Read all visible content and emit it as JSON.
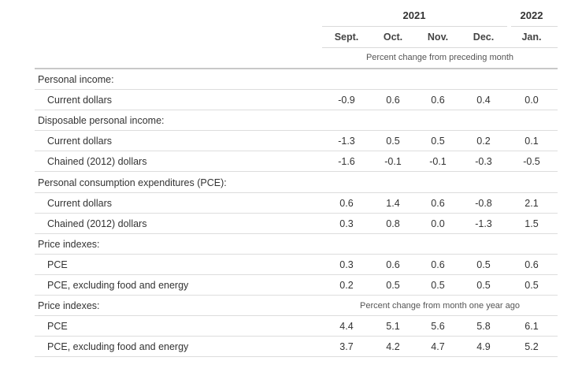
{
  "header": {
    "year_2021": "2021",
    "year_2022": "2022",
    "months": [
      "Sept.",
      "Oct.",
      "Nov.",
      "Dec.",
      "Jan."
    ],
    "unit_note": "Percent change from preceding month"
  },
  "rows": [
    {
      "label": "Personal income:",
      "indent": false,
      "values": [
        "",
        "",
        "",
        "",
        ""
      ],
      "note": ""
    },
    {
      "label": "Current dollars",
      "indent": true,
      "values": [
        "-0.9",
        "0.6",
        "0.6",
        "0.4",
        "0.0"
      ],
      "note": ""
    },
    {
      "label": "Disposable personal income:",
      "indent": false,
      "values": [
        "",
        "",
        "",
        "",
        ""
      ],
      "note": ""
    },
    {
      "label": "Current dollars",
      "indent": true,
      "values": [
        "-1.3",
        "0.5",
        "0.5",
        "0.2",
        "0.1"
      ],
      "note": ""
    },
    {
      "label": "Chained (2012) dollars",
      "indent": true,
      "values": [
        "-1.6",
        "-0.1",
        "-0.1",
        "-0.3",
        "-0.5"
      ],
      "note": ""
    },
    {
      "label": "Personal consumption expenditures (PCE):",
      "indent": false,
      "values": [
        "",
        "",
        "",
        "",
        ""
      ],
      "note": ""
    },
    {
      "label": "Current dollars",
      "indent": true,
      "values": [
        "0.6",
        "1.4",
        "0.6",
        "-0.8",
        "2.1"
      ],
      "note": ""
    },
    {
      "label": "Chained (2012) dollars",
      "indent": true,
      "values": [
        "0.3",
        "0.8",
        "0.0",
        "-1.3",
        "1.5"
      ],
      "note": ""
    },
    {
      "label": "Price indexes:",
      "indent": false,
      "values": [
        "",
        "",
        "",
        "",
        ""
      ],
      "note": ""
    },
    {
      "label": "PCE",
      "indent": true,
      "values": [
        "0.3",
        "0.6",
        "0.6",
        "0.5",
        "0.6"
      ],
      "note": ""
    },
    {
      "label": "PCE, excluding food and energy",
      "indent": true,
      "values": [
        "0.2",
        "0.5",
        "0.5",
        "0.5",
        "0.5"
      ],
      "note": ""
    },
    {
      "label": "Price indexes:",
      "indent": false,
      "values": [
        "",
        "",
        "",
        "",
        ""
      ],
      "note": "Percent change from month one year ago"
    },
    {
      "label": "PCE",
      "indent": true,
      "values": [
        "4.4",
        "5.1",
        "5.6",
        "5.8",
        "6.1"
      ],
      "note": ""
    },
    {
      "label": "PCE, excluding food and energy",
      "indent": true,
      "values": [
        "3.7",
        "4.2",
        "4.7",
        "4.9",
        "5.2"
      ],
      "note": ""
    }
  ]
}
